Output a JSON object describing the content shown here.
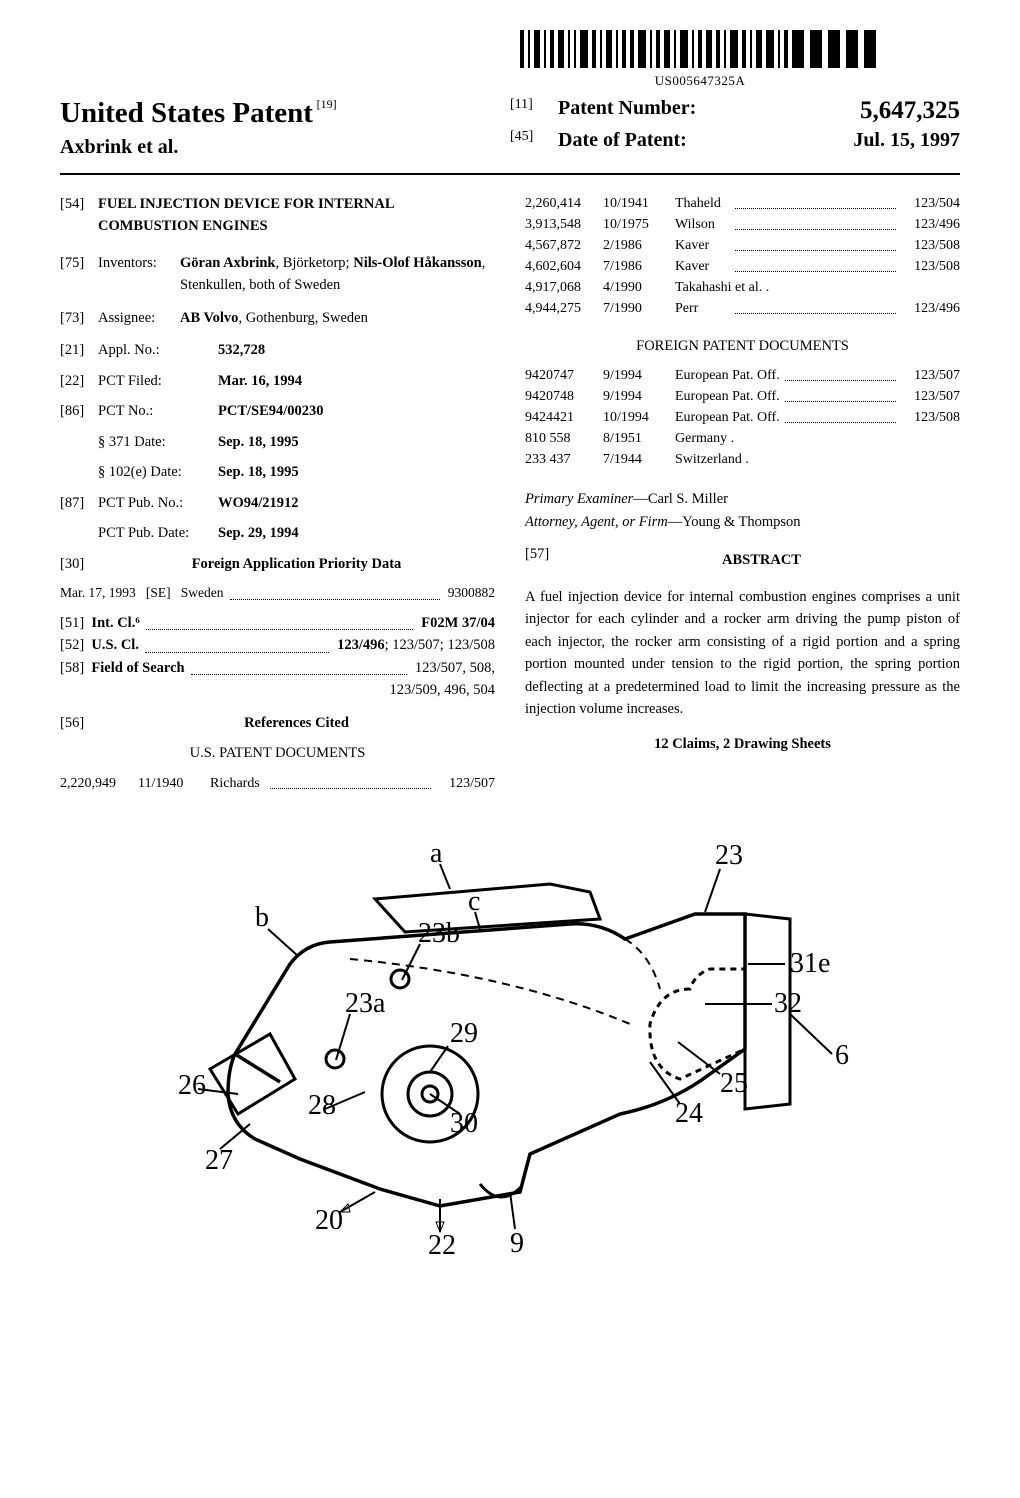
{
  "barcode_text": "US005647325A",
  "title": "United States Patent",
  "title_code": "[19]",
  "inventor_header": "Axbrink et al.",
  "patent_number_code": "[11]",
  "patent_number_label": "Patent Number:",
  "patent_number": "5,647,325",
  "date_code": "[45]",
  "date_label": "Date of Patent:",
  "date_value": "Jul. 15, 1997",
  "invention": {
    "code": "[54]",
    "title": "FUEL INJECTION DEVICE FOR INTERNAL COMBUSTION ENGINES"
  },
  "inventors": {
    "code": "[75]",
    "label": "Inventors:",
    "text_bold1": "Göran Axbrink",
    "text1": ", Björketorp; ",
    "text_bold2": "Nils-Olof Håkansson",
    "text2": ", Stenkullen, both of Sweden"
  },
  "assignee": {
    "code": "[73]",
    "label": "Assignee:",
    "bold": "AB Volvo",
    "rest": ", Gothenburg, Sweden"
  },
  "appl": {
    "code": "[21]",
    "label": "Appl. No.:",
    "value": "532,728"
  },
  "pct_filed": {
    "code": "[22]",
    "label": "PCT Filed:",
    "value": "Mar. 16, 1994"
  },
  "pct_no": {
    "code": "[86]",
    "label": "PCT No.:",
    "value": "PCT/SE94/00230"
  },
  "s371": {
    "label": "§ 371 Date:",
    "value": "Sep. 18, 1995"
  },
  "s102e": {
    "label": "§ 102(e) Date:",
    "value": "Sep. 18, 1995"
  },
  "pct_pub_no": {
    "code": "[87]",
    "label": "PCT Pub. No.:",
    "value": "WO94/21912"
  },
  "pct_pub_date": {
    "label": "PCT Pub. Date:",
    "value": "Sep. 29, 1994"
  },
  "foreign_priority": {
    "code": "[30]",
    "title": "Foreign Application Priority Data",
    "date": "Mar. 17, 1993",
    "country_code": "[SE]",
    "country": "Sweden",
    "number": "9300882"
  },
  "intcl": {
    "code": "[51]",
    "label": "Int. Cl.⁶",
    "value": "F02M 37/04"
  },
  "uscl": {
    "code": "[52]",
    "label": "U.S. Cl.",
    "bold": "123/496",
    "rest": "; 123/507; 123/508"
  },
  "field": {
    "code": "[58]",
    "label": "Field of Search",
    "value1": "123/507, 508,",
    "value2": "123/509, 496, 504"
  },
  "refs_cited": {
    "code": "[56]",
    "title": "References Cited"
  },
  "us_docs_title": "U.S. PATENT DOCUMENTS",
  "us_docs": [
    {
      "num": "2,220,949",
      "date": "11/1940",
      "name": "Richards",
      "cls": "123/507"
    },
    {
      "num": "2,260,414",
      "date": "10/1941",
      "name": "Thaheld",
      "cls": "123/504"
    },
    {
      "num": "3,913,548",
      "date": "10/1975",
      "name": "Wilson",
      "cls": "123/496"
    },
    {
      "num": "4,567,872",
      "date": "2/1986",
      "name": "Kaver",
      "cls": "123/508"
    },
    {
      "num": "4,602,604",
      "date": "7/1986",
      "name": "Kaver",
      "cls": "123/508"
    },
    {
      "num": "4,917,068",
      "date": "4/1990",
      "name": "Takahashi et al. .",
      "cls": ""
    },
    {
      "num": "4,944,275",
      "date": "7/1990",
      "name": "Perr",
      "cls": "123/496"
    }
  ],
  "foreign_docs_title": "FOREIGN PATENT DOCUMENTS",
  "foreign_docs": [
    {
      "num": "9420747",
      "date": "9/1994",
      "name": "European Pat. Off.",
      "cls": "123/507"
    },
    {
      "num": "9420748",
      "date": "9/1994",
      "name": "European Pat. Off.",
      "cls": "123/507"
    },
    {
      "num": "9424421",
      "date": "10/1994",
      "name": "European Pat. Off.",
      "cls": "123/508"
    },
    {
      "num": "810 558",
      "date": "8/1951",
      "name": "Germany .",
      "cls": ""
    },
    {
      "num": "233 437",
      "date": "7/1944",
      "name": "Switzerland .",
      "cls": ""
    }
  ],
  "examiner": {
    "label": "Primary Examiner",
    "value": "—Carl S. Miller"
  },
  "attorney": {
    "label": "Attorney, Agent, or Firm",
    "value": "—Young & Thompson"
  },
  "abstract": {
    "code": "[57]",
    "title": "ABSTRACT",
    "text": "A fuel injection device for internal combustion engines comprises a unit injector for each cylinder and a rocker arm driving the pump piston of each injector, the rocker arm consisting of a rigid portion and a spring portion mounted under tension to the rigid portion, the spring portion deflecting at a predetermined load to limit the increasing pressure as the injection volume increases."
  },
  "counts": "12 Claims, 2 Drawing Sheets",
  "figure_labels": [
    "a",
    "b",
    "c",
    "e",
    "6",
    "9",
    "20",
    "22",
    "23",
    "23a",
    "23b",
    "24",
    "25",
    "26",
    "27",
    "28",
    "29",
    "30",
    "31",
    "32"
  ]
}
